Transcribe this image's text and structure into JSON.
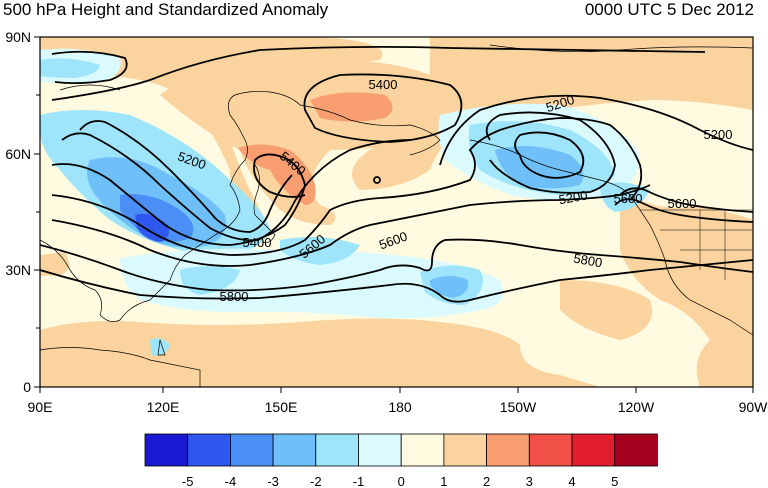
{
  "title_left": "500 hPa Height and Standardized Anomaly",
  "title_right": "0000 UTC 5 Dec 2012",
  "map": {
    "lat_ticks": [
      "90N",
      "60N",
      "30N",
      "0"
    ],
    "lon_ticks": [
      "90E",
      "120E",
      "150E",
      "180",
      "150W",
      "120W",
      "90W"
    ],
    "contour_labels": [
      {
        "text": "5400"
      },
      {
        "text": "5200"
      },
      {
        "text": "5200"
      },
      {
        "text": "5200"
      },
      {
        "text": "5400"
      },
      {
        "text": "5400"
      },
      {
        "text": "5200"
      },
      {
        "text": "5600"
      },
      {
        "text": "5600"
      },
      {
        "text": "5800"
      },
      {
        "text": "5800"
      },
      {
        "text": "5600"
      },
      {
        "text": "5600"
      }
    ]
  },
  "colorbar": {
    "labels": [
      "-5",
      "-4",
      "-3",
      "-2",
      "-1",
      "0",
      "1",
      "2",
      "3",
      "4",
      "5"
    ],
    "colors": [
      "#1a1ad2",
      "#2e58f0",
      "#4a8ef6",
      "#6fc0f8",
      "#9ee4fa",
      "#dbfafe",
      "#fffae0",
      "#fad39e",
      "#f89e70",
      "#f05046",
      "#e21e2e",
      "#a6001e"
    ]
  }
}
